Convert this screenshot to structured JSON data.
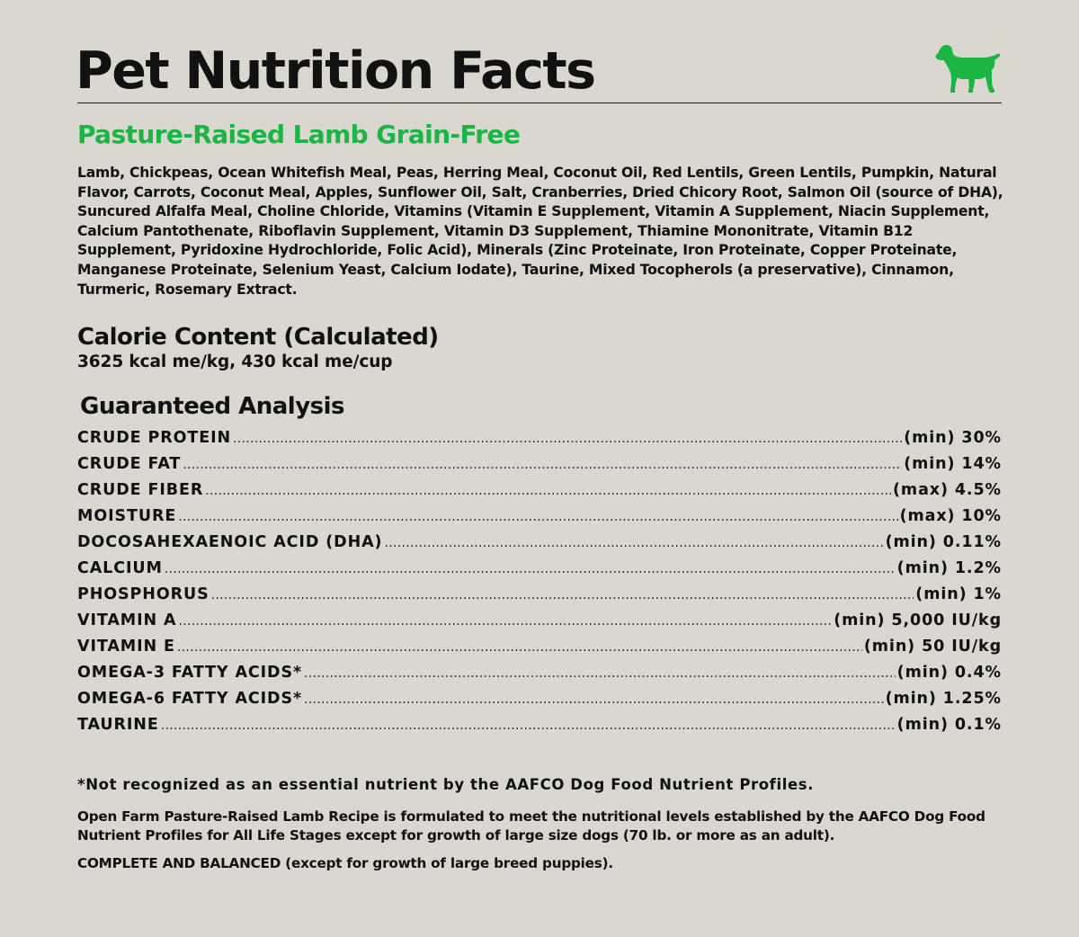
{
  "header": {
    "title": "Pet Nutrition Facts",
    "icon": "dog-icon",
    "icon_color": "#1bb544"
  },
  "product": {
    "name": "Pasture-Raised Lamb Grain-Free",
    "accent_color": "#1bb544"
  },
  "ingredients": "Lamb, Chickpeas, Ocean Whitefish Meal, Peas, Herring Meal, Coconut Oil, Red Lentils, Green Lentils, Pumpkin, Natural Flavor, Carrots, Coconut Meal, Apples, Sunflower Oil, Salt, Cranberries, Dried Chicory Root, Salmon Oil (source of DHA), Suncured Alfalfa Meal, Choline Chloride, Vitamins (Vitamin E Supplement, Vitamin A Supplement, Niacin Supplement, Calcium Pantothenate, Riboflavin Supplement, Vitamin D3 Supplement, Thiamine Mononitrate, Vitamin B12 Supplement, Pyridoxine Hydrochloride, Folic Acid), Minerals (Zinc Proteinate, Iron Proteinate, Copper Proteinate, Manganese Proteinate, Selenium Yeast, Calcium Iodate), Taurine, Mixed Tocopherols (a preservative), Cinnamon, Turmeric, Rosemary Extract.",
  "calorie": {
    "heading": "Calorie Content (Calculated)",
    "value": "3625 kcal me/kg, 430 kcal me/cup"
  },
  "guaranteed_analysis": {
    "heading": "Guaranteed Analysis",
    "rows": [
      {
        "name": "CRUDE PROTEIN",
        "value": "(min) 30%"
      },
      {
        "name": "CRUDE FAT",
        "value": "(min) 14%"
      },
      {
        "name": "CRUDE FIBER",
        "value": "(max) 4.5%"
      },
      {
        "name": "MOISTURE",
        "value": "(max) 10%"
      },
      {
        "name": "DOCOSAHEXAENOIC ACID (DHA)",
        "value": "(min) 0.11%"
      },
      {
        "name": "CALCIUM",
        "value": "(min) 1.2%"
      },
      {
        "name": "PHOSPHORUS",
        "value": "(min) 1%"
      },
      {
        "name": "VITAMIN A",
        "value": "(min) 5,000 IU/kg"
      },
      {
        "name": "VITAMIN E",
        "value": "(min) 50 IU/kg"
      },
      {
        "name": "OMEGA-3 FATTY ACIDS*",
        "value": "(min) 0.4%"
      },
      {
        "name": "OMEGA-6 FATTY ACIDS*",
        "value": "(min) 1.25%"
      },
      {
        "name": "TAURINE",
        "value": "(min) 0.1%"
      }
    ]
  },
  "footnote": "*Not recognized as an essential nutrient by the AAFCO Dog Food Nutrient Profiles.",
  "statement": "Open Farm Pasture-Raised Lamb Recipe is formulated to meet the nutritional levels established by the AAFCO Dog Food Nutrient Profiles for All Life Stages except for growth of large size dogs (70 lb. or more as an adult).",
  "complete": "COMPLETE AND BALANCED (except for growth of large breed puppies)."
}
